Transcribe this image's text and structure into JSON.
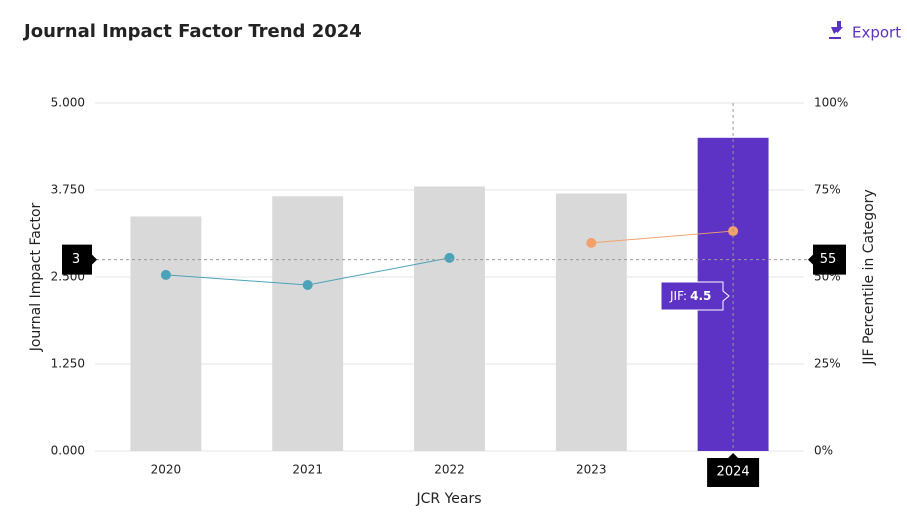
{
  "toolbar": {
    "export": "Export"
  },
  "chart_data": {
    "type": "bar",
    "title": "Journal Impact Factor Trend 2024",
    "x_label": "JCR Years",
    "y_label": "Journal Impact Factor",
    "y2_label": "JIF Percentile in Category",
    "categories": [
      "2020",
      "2021",
      "2022",
      "2023",
      "2024"
    ],
    "series": [
      {
        "type": "bar",
        "colors": [
          "#d9d9d9",
          "#d9d9d9",
          "#d9d9d9",
          "#d9d9d9",
          "#5c33c4"
        ],
        "values": [
          3.37,
          3.66,
          3.8,
          3.7,
          4.5
        ]
      },
      {
        "type": "line",
        "axis": "y2",
        "color": "#4aa3b8",
        "values": [
          50.6,
          47.7,
          55.5,
          null,
          null
        ]
      },
      {
        "type": "line",
        "axis": "y2",
        "color": "#f4a06b",
        "values": [
          null,
          null,
          null,
          59.8,
          63.2
        ]
      }
    ],
    "ylim": [
      0,
      5
    ],
    "yticks": [
      {
        "value": 0,
        "label": "0.000"
      },
      {
        "value": 1.25,
        "label": "1.250"
      },
      {
        "value": 2.5,
        "label": "2.500"
      },
      {
        "value": 3.75,
        "label": "3.750"
      },
      {
        "value": 5,
        "label": "5.000"
      }
    ],
    "y2lim": [
      0,
      100
    ],
    "y2ticks": [
      {
        "value": 0,
        "label": "0%"
      },
      {
        "value": 25,
        "label": "25%"
      },
      {
        "value": 50,
        "label": "50%"
      },
      {
        "value": 75,
        "label": "75%"
      },
      {
        "value": 100,
        "label": "100%"
      }
    ],
    "grid": true,
    "crosshair": {
      "y": 3,
      "y2": 55
    },
    "tooltip_label": "JIF:"
  }
}
